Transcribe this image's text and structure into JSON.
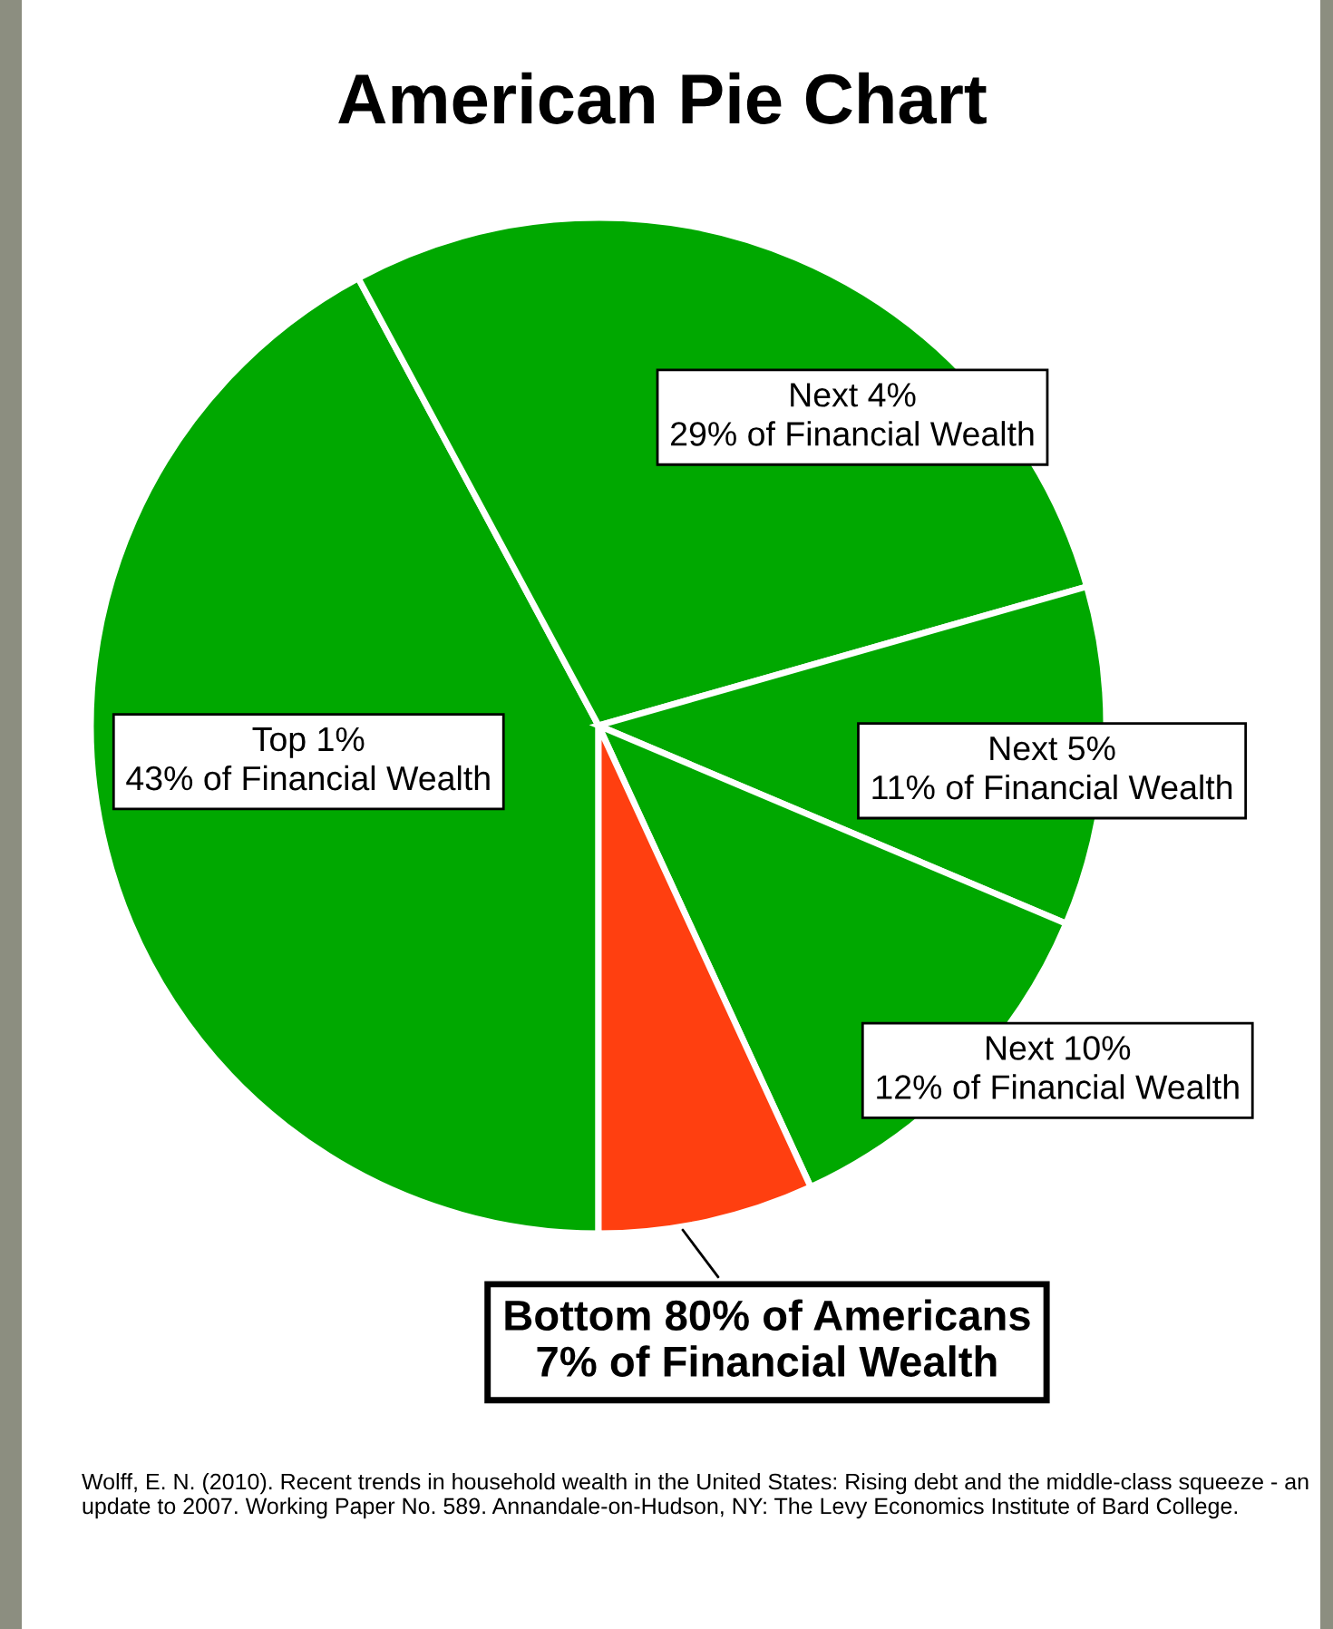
{
  "chart_data": {
    "type": "pie",
    "title": "American Pie Chart",
    "categories": [
      "Top 1%",
      "Next 4%",
      "Next 5%",
      "Next 10%",
      "Bottom 80% of Americans"
    ],
    "values": [
      43,
      29,
      11,
      12,
      7
    ],
    "value_labels": [
      "43% of Financial Wealth",
      "29% of Financial Wealth",
      "11% of Financial Wealth",
      "12% of Financial Wealth",
      "7% of Financial Wealth"
    ],
    "colors": [
      "#00a800",
      "#00a800",
      "#00a800",
      "#00a800",
      "#ff3f10"
    ],
    "legend": false,
    "annotations": [
      "Wolff, E. N. (2010). Recent trends in household wealth in the United States: Rising debt and the middle-class squeeze - an update to 2007. Working Paper No. 589. Annandale-on-Hudson, NY: The Levy Economics Institute of Bard College."
    ]
  }
}
